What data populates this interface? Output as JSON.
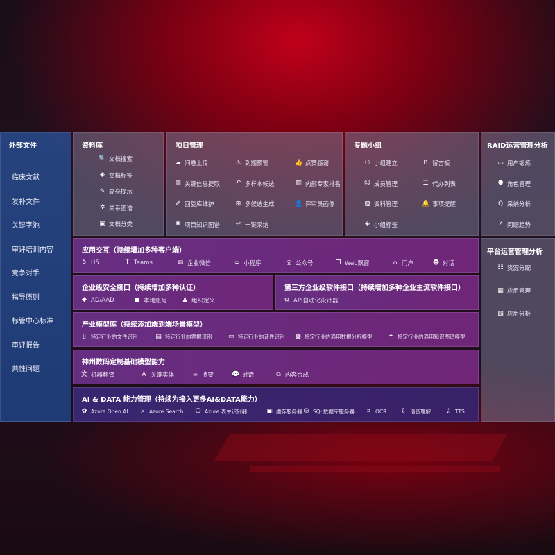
{
  "left": {
    "title": "外部文件",
    "items": [
      "临床文献",
      "发补文件",
      "关键字池",
      "审评培训内容",
      "竞争对手",
      "指导原则",
      "标管中心标准",
      "审评报告",
      "共性问题"
    ]
  },
  "library": {
    "title": "资料库",
    "items": [
      {
        "icon": "doc-search-icon",
        "label": "文档搜索"
      },
      {
        "icon": "tag-icon",
        "label": "文档标签"
      },
      {
        "icon": "highlight-icon",
        "label": "高亮提示"
      },
      {
        "icon": "graph-icon",
        "label": "关系图谱"
      },
      {
        "icon": "folder-icon",
        "label": "文档分类"
      }
    ]
  },
  "project": {
    "title": "项目管理",
    "items": [
      {
        "icon": "cloud-upload-icon",
        "label": "问卷上传"
      },
      {
        "icon": "alarm-icon",
        "label": "到期预警"
      },
      {
        "icon": "thumbs-up-icon",
        "label": "点赞感谢"
      },
      {
        "icon": "extract-icon",
        "label": "关键信息提取"
      },
      {
        "icon": "reply-all-icon",
        "label": "多样本候选"
      },
      {
        "icon": "ranking-icon",
        "label": "内部专家排名"
      },
      {
        "icon": "pen-icon",
        "label": "回复库维护"
      },
      {
        "icon": "puzzle-icon",
        "label": "多候选生成"
      },
      {
        "icon": "user-icon",
        "label": "评审员画像"
      },
      {
        "icon": "network-icon",
        "label": "项目知识图谱"
      },
      {
        "icon": "reply-icon",
        "label": "一键采纳"
      }
    ]
  },
  "group": {
    "title": "专题小组",
    "items": [
      {
        "icon": "group-icon",
        "label": "小组建立"
      },
      {
        "icon": "bbs-icon",
        "label": "留言板"
      },
      {
        "icon": "member-icon",
        "label": "成员管理"
      },
      {
        "icon": "list-icon",
        "label": "代办列表"
      },
      {
        "icon": "material-icon",
        "label": "资料管理"
      },
      {
        "icon": "bell-icon",
        "label": "事项提醒"
      },
      {
        "icon": "tag-icon",
        "label": "小组标签"
      }
    ]
  },
  "raid": {
    "title": "RAID运营管理分析",
    "items": [
      {
        "icon": "id-card-icon",
        "label": "用户锻炼"
      },
      {
        "icon": "role-icon",
        "label": "角色管理"
      },
      {
        "icon": "qa-icon",
        "label": "采纳分析"
      },
      {
        "icon": "trend-icon",
        "label": "问题趋势"
      }
    ]
  },
  "platform": {
    "title": "平台运营管理分析",
    "items": [
      {
        "icon": "resource-icon",
        "label": "资源分配"
      },
      {
        "icon": "apps-icon",
        "label": "应用管理"
      },
      {
        "icon": "chart-icon",
        "label": "应用分析"
      }
    ]
  },
  "app": {
    "title": "应用交互（持续增加多种客户端）",
    "items": [
      {
        "icon": "html5-icon",
        "label": "H5"
      },
      {
        "icon": "teams-icon",
        "label": "Teams"
      },
      {
        "icon": "wechat-icon",
        "label": "企业微信"
      },
      {
        "icon": "miniprogram-icon",
        "label": "小程序"
      },
      {
        "icon": "official-account-icon",
        "label": "公众号"
      },
      {
        "icon": "window-icon",
        "label": "Web飘窗"
      },
      {
        "icon": "portal-icon",
        "label": "门户"
      },
      {
        "icon": "chat-icon",
        "label": "对话"
      }
    ]
  },
  "security": {
    "title": "企业级安全接口（持续增加多种认证）",
    "items": [
      {
        "icon": "ad-icon",
        "label": "AD/AAD"
      },
      {
        "icon": "local-account-icon",
        "label": "本地账号"
      },
      {
        "icon": "org-icon",
        "label": "组织定义"
      }
    ]
  },
  "thirdparty": {
    "title": "第三方企业级软件接口（持续增加多种企业主流软件接口）",
    "items": [
      {
        "icon": "api-icon",
        "label": "API自动化设计器"
      }
    ]
  },
  "industry": {
    "title": "产业模型库（持续添加端到端场景模型）",
    "items": [
      {
        "icon": "file-icon",
        "label": "特定行业的文件识别"
      },
      {
        "icon": "receipt-icon",
        "label": "特定行业的票据识别"
      },
      {
        "icon": "id-card-icon",
        "label": "特定行业的证件识别"
      },
      {
        "icon": "data-analysis-icon",
        "label": "特定行业的通用数据分析模型"
      },
      {
        "icon": "knowledge-graph-icon",
        "label": "特定行业的通用知识图谱模型"
      }
    ]
  },
  "base": {
    "title": "神州数码定制基础模型能力",
    "items": [
      {
        "icon": "translate-icon",
        "label": "机器翻译"
      },
      {
        "icon": "entity-icon",
        "label": "关键实体"
      },
      {
        "icon": "summary-icon",
        "label": "摘要"
      },
      {
        "icon": "dialog-icon",
        "label": "对话"
      },
      {
        "icon": "compose-icon",
        "label": "内容合成"
      }
    ]
  },
  "ai": {
    "title": "AI & DATA 能力管理（持续为接入更多AI&DATA能力）",
    "items": [
      {
        "icon": "openai-icon",
        "label": "Azure Open AI"
      },
      {
        "icon": "search-icon",
        "label": "Azure Search"
      },
      {
        "icon": "form-recognizer-icon",
        "label": "Azure 表单识别器"
      },
      {
        "icon": "cache-icon",
        "label": "缓存服务器"
      },
      {
        "icon": "sql-icon",
        "label": "SQL数据库服务器"
      },
      {
        "icon": "ocr-icon",
        "label": "OCR"
      },
      {
        "icon": "speech-icon",
        "label": "语音理解"
      },
      {
        "icon": "tts-icon",
        "label": "TTS"
      }
    ]
  }
}
